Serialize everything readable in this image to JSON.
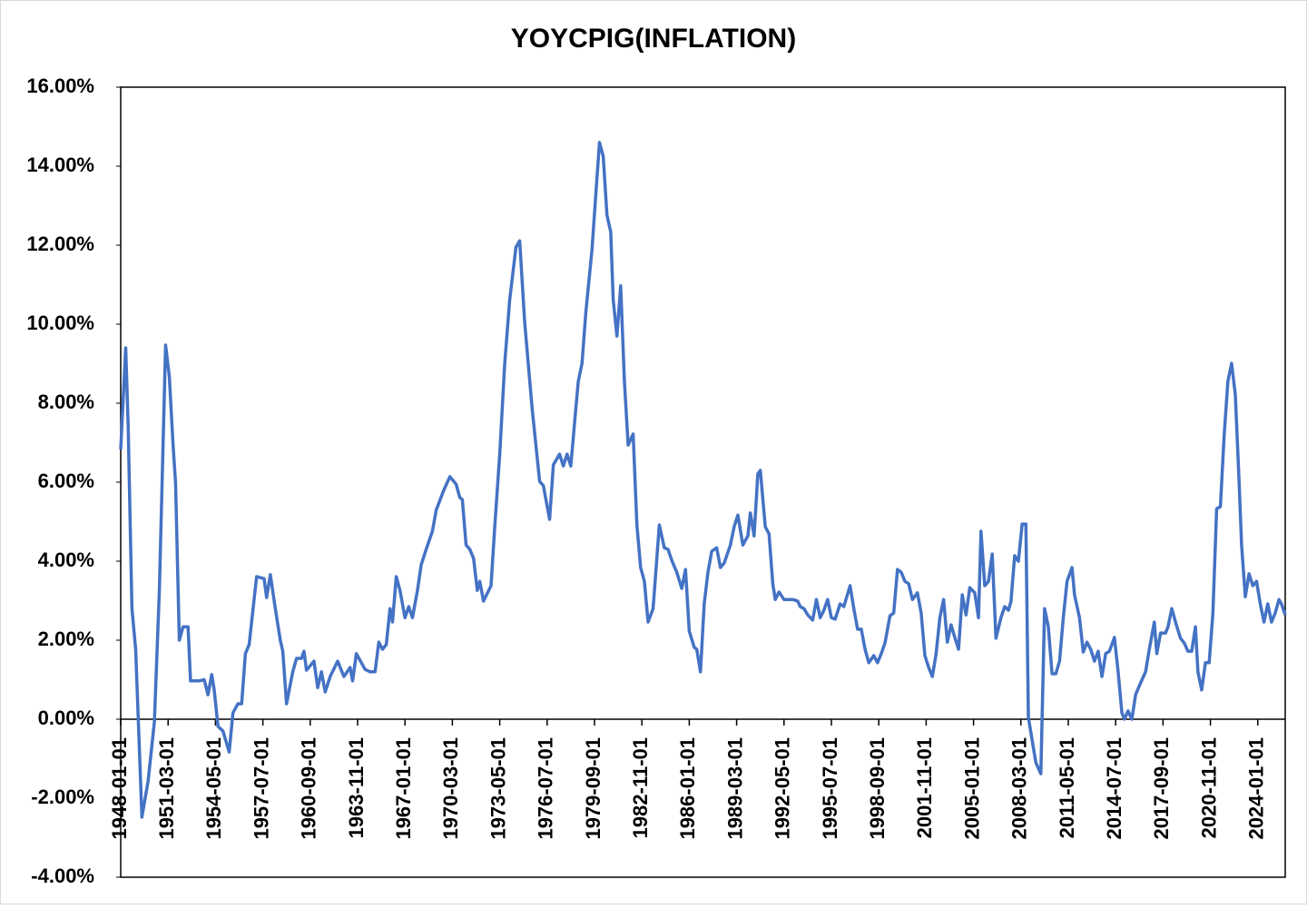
{
  "chart_data": {
    "type": "line",
    "title": "YOYCPIG(INFLATION)",
    "color": "#4472c4",
    "xlim": [
      "1948-01-01",
      "2025-11-01"
    ],
    "xticks": [
      "1948-01-01",
      "1951-03-01",
      "1954-05-01",
      "1957-07-01",
      "1960-09-01",
      "1963-11-01",
      "1967-01-01",
      "1970-03-01",
      "1973-05-01",
      "1976-07-01",
      "1979-09-01",
      "1982-11-01",
      "1986-01-01",
      "1989-03-01",
      "1992-05-01",
      "1995-07-01",
      "1998-09-01",
      "2001-11-01",
      "2005-01-01",
      "2008-03-01",
      "2011-05-01",
      "2014-07-01",
      "2017-09-01",
      "2020-11-01",
      "2024-01-01"
    ],
    "ylim": [
      -4,
      16
    ],
    "yticks": [
      {
        "value": -4,
        "label": "-4.00%"
      },
      {
        "value": -2,
        "label": "-2.00%"
      },
      {
        "value": 0,
        "label": "0.00%"
      },
      {
        "value": 2,
        "label": "2.00%"
      },
      {
        "value": 4,
        "label": "4.00%"
      },
      {
        "value": 6,
        "label": "6.00%"
      },
      {
        "value": 8,
        "label": "8.00%"
      },
      {
        "value": 10,
        "label": "10.00%"
      },
      {
        "value": 12,
        "label": "12.00%"
      },
      {
        "value": 14,
        "label": "14.00%"
      },
      {
        "value": 16,
        "label": "16.00%"
      }
    ],
    "x": [
      "1948-01-01",
      "1948-05-01",
      "1948-07-01",
      "1948-10-01",
      "1949-01-01",
      "1949-06-01",
      "1949-11-01",
      "1950-04-01",
      "1950-08-01",
      "1951-01-01",
      "1951-04-01",
      "1951-07-01",
      "1951-09-01",
      "1951-12-01",
      "1952-03-01",
      "1952-07-01",
      "1952-09-01",
      "1953-04-01",
      "1953-08-01",
      "1953-11-01",
      "1954-02-01",
      "1954-04-01",
      "1954-07-01",
      "1954-11-01",
      "1955-04-01",
      "1955-07-01",
      "1955-11-01",
      "1956-02-01",
      "1956-05-01",
      "1956-08-01",
      "1957-02-01",
      "1957-08-01",
      "1957-10-01",
      "1958-01-01",
      "1958-05-01",
      "1958-09-01",
      "1958-11-01",
      "1959-02-01",
      "1959-07-01",
      "1959-10-01",
      "1960-02-01",
      "1960-04-01",
      "1960-06-01",
      "1960-12-01",
      "1961-03-01",
      "1961-06-01",
      "1961-09-01",
      "1962-01-01",
      "1962-07-01",
      "1962-12-01",
      "1963-05-01",
      "1963-07-01",
      "1963-10-01",
      "1964-05-01",
      "1964-09-01",
      "1965-01-01",
      "1965-04-01",
      "1965-07-01",
      "1965-10-01",
      "1966-01-01",
      "1966-03-01",
      "1966-06-01",
      "1966-09-01",
      "1967-01-01",
      "1967-04-01",
      "1967-07-01",
      "1967-11-01",
      "1968-02-01",
      "1968-06-01",
      "1968-11-01",
      "1969-02-01",
      "1969-08-01",
      "1970-01-01",
      "1970-06-01",
      "1970-09-01",
      "1970-11-01",
      "1971-02-01",
      "1971-05-01",
      "1971-08-01",
      "1971-11-01",
      "1972-01-01",
      "1972-04-01",
      "1972-10-01",
      "1973-01-01",
      "1973-05-01",
      "1973-09-01",
      "1974-01-01",
      "1974-06-01",
      "1974-09-01",
      "1975-01-01",
      "1975-07-01",
      "1976-01-01",
      "1976-04-01",
      "1976-09-01",
      "1976-12-01",
      "1977-05-01",
      "1977-08-01",
      "1977-11-01",
      "1978-02-01",
      "1978-06-01",
      "1978-08-01",
      "1978-11-01",
      "1979-02-01",
      "1979-07-01",
      "1979-10-01",
      "1980-01-01",
      "1980-04-01",
      "1980-07-01",
      "1980-10-01",
      "1980-12-01",
      "1981-03-01",
      "1981-06-01",
      "1981-09-01",
      "1981-12-01",
      "1982-04-01",
      "1982-07-01",
      "1982-10-01",
      "1983-01-01",
      "1983-04-01",
      "1983-08-01",
      "1984-01-01",
      "1984-05-01",
      "1984-08-01",
      "1984-11-01",
      "1985-03-01",
      "1985-07-01",
      "1985-10-01",
      "1986-01-01",
      "1986-05-01",
      "1986-07-01",
      "1986-10-01",
      "1987-01-01",
      "1987-04-01",
      "1987-07-01",
      "1987-11-01",
      "1988-02-01",
      "1988-05-01",
      "1988-10-01",
      "1989-01-01",
      "1989-04-01",
      "1989-08-01",
      "1989-12-01",
      "1990-02-01",
      "1990-05-01",
      "1990-08-01",
      "1990-10-01",
      "1991-02-01",
      "1991-05-01",
      "1991-08-01",
      "1991-10-01",
      "1992-01-01",
      "1992-05-01",
      "1992-12-01",
      "1993-04-01",
      "1993-06-01",
      "1993-09-01",
      "1993-12-01",
      "1994-04-01",
      "1994-07-01",
      "1994-10-01",
      "1995-01-01",
      "1995-04-01",
      "1995-07-01",
      "1995-10-01",
      "1996-02-01",
      "1996-05-01",
      "1996-10-01",
      "1997-01-01",
      "1997-04-01",
      "1997-07-01",
      "1997-10-01",
      "1998-01-01",
      "1998-05-01",
      "1998-08-01",
      "1998-11-01",
      "1999-02-01",
      "1999-06-01",
      "1999-09-01",
      "1999-12-01",
      "2000-03-01",
      "2000-06-01",
      "2000-09-01",
      "2000-12-01",
      "2001-04-01",
      "2001-07-01",
      "2001-10-01",
      "2002-01-01",
      "2002-04-01",
      "2002-07-01",
      "2002-10-01",
      "2003-01-01",
      "2003-04-01",
      "2003-07-01",
      "2003-10-01",
      "2004-01-01",
      "2004-04-01",
      "2004-07-01",
      "2004-10-01",
      "2005-02-01",
      "2005-05-01",
      "2005-07-01",
      "2005-10-01",
      "2006-01-01",
      "2006-04-01",
      "2006-07-01",
      "2006-11-01",
      "2007-02-01",
      "2007-05-01",
      "2007-07-01",
      "2007-10-01",
      "2008-01-01",
      "2008-04-01",
      "2008-07-01",
      "2008-09-01",
      "2008-12-01",
      "2009-03-01",
      "2009-07-01",
      "2009-10-01",
      "2010-01-01",
      "2010-04-01",
      "2010-07-01",
      "2010-10-01",
      "2011-01-01",
      "2011-04-01",
      "2011-08-01",
      "2011-10-01",
      "2012-02-01",
      "2012-05-01",
      "2012-08-01",
      "2012-11-01",
      "2013-02-01",
      "2013-05-01",
      "2013-08-01",
      "2013-11-01",
      "2014-02-01",
      "2014-06-01",
      "2014-09-01",
      "2014-12-01",
      "2015-02-01",
      "2015-05-01",
      "2015-08-01",
      "2015-11-01",
      "2016-03-01",
      "2016-07-01",
      "2016-10-01",
      "2017-02-01",
      "2017-04-01",
      "2017-07-01",
      "2017-11-01",
      "2018-01-01",
      "2018-04-01",
      "2018-07-01",
      "2018-11-01",
      "2019-02-01",
      "2019-05-01",
      "2019-08-01",
      "2019-11-01",
      "2020-01-01",
      "2020-04-01",
      "2020-07-01",
      "2020-10-01",
      "2021-01-01",
      "2021-04-01",
      "2021-07-01",
      "2021-10-01",
      "2022-01-01",
      "2022-04-01",
      "2022-07-01",
      "2022-10-01",
      "2022-12-01",
      "2023-03-01",
      "2023-06-01",
      "2023-09-01",
      "2023-12-01",
      "2024-03-01",
      "2024-06-01",
      "2024-09-01",
      "2024-12-01",
      "2025-03-01",
      "2025-06-01",
      "2025-08-01",
      "2025-11-01"
    ],
    "values": [
      6.83,
      9.4,
      7.4,
      2.8,
      1.77,
      -2.48,
      -1.56,
      -0.07,
      3.26,
      9.47,
      8.67,
      6.94,
      5.98,
      2.0,
      2.34,
      2.34,
      0.97,
      0.97,
      1.0,
      0.62,
      1.13,
      0.74,
      -0.18,
      -0.3,
      -0.83,
      0.16,
      0.39,
      0.39,
      1.66,
      1.89,
      3.61,
      3.56,
      3.08,
      3.66,
      2.8,
      2.0,
      1.72,
      0.39,
      1.2,
      1.54,
      1.54,
      1.72,
      1.24,
      1.47,
      0.8,
      1.2,
      0.69,
      1.08,
      1.47,
      1.08,
      1.31,
      0.97,
      1.66,
      1.26,
      1.2,
      1.2,
      1.95,
      1.77,
      1.89,
      2.8,
      2.46,
      3.61,
      3.26,
      2.57,
      2.85,
      2.57,
      3.26,
      3.91,
      4.3,
      4.76,
      5.29,
      5.79,
      6.14,
      5.95,
      5.61,
      5.56,
      4.41,
      4.3,
      4.07,
      3.26,
      3.49,
      2.99,
      3.38,
      4.87,
      6.71,
      9.01,
      10.62,
      11.95,
      12.11,
      10.05,
      7.86,
      6.02,
      5.91,
      5.06,
      6.44,
      6.71,
      6.41,
      6.71,
      6.41,
      7.86,
      8.55,
      9.01,
      10.28,
      11.89,
      13.26,
      14.6,
      14.25,
      12.76,
      12.34,
      10.62,
      9.7,
      10.97,
      8.55,
      6.94,
      7.22,
      4.92,
      3.84,
      3.49,
      2.46,
      2.8,
      4.92,
      4.34,
      4.3,
      4.02,
      3.72,
      3.31,
      3.79,
      2.23,
      1.82,
      1.77,
      1.2,
      2.92,
      3.72,
      4.25,
      4.34,
      3.84,
      3.95,
      4.41,
      4.87,
      5.17,
      4.41,
      4.64,
      5.22,
      4.64,
      6.21,
      6.3,
      4.87,
      4.69,
      3.43,
      3.03,
      3.22,
      3.03,
      3.03,
      2.99,
      2.85,
      2.8,
      2.64,
      2.51,
      3.03,
      2.57,
      2.76,
      3.03,
      2.57,
      2.53,
      2.92,
      2.85,
      3.38,
      2.8,
      2.28,
      2.28,
      1.77,
      1.43,
      1.61,
      1.43,
      1.66,
      1.93,
      2.62,
      2.69,
      3.79,
      3.72,
      3.49,
      3.43,
      3.03,
      3.2,
      2.69,
      1.61,
      1.31,
      1.08,
      1.66,
      2.57,
      3.03,
      1.95,
      2.39,
      2.07,
      1.77,
      3.15,
      2.64,
      3.33,
      3.2,
      2.57,
      4.76,
      3.38,
      3.49,
      4.18,
      2.05,
      2.57,
      2.85,
      2.76,
      2.97,
      4.14,
      4.0,
      4.94,
      4.94,
      0.05,
      -0.53,
      -1.1,
      -1.38,
      2.8,
      2.34,
      1.15,
      1.15,
      1.47,
      2.57,
      3.49,
      3.84,
      3.15,
      2.57,
      1.7,
      1.95,
      1.77,
      1.47,
      1.72,
      1.08,
      1.66,
      1.72,
      2.07,
      1.2,
      0.16,
      0.0,
      0.21,
      0.0,
      0.62,
      0.92,
      1.2,
      1.77,
      2.46,
      1.66,
      2.18,
      2.18,
      2.34,
      2.8,
      2.46,
      2.05,
      1.93,
      1.72,
      1.72,
      2.34,
      1.2,
      0.74,
      1.43,
      1.43,
      2.69,
      5.33,
      5.38,
      7.17,
      8.55,
      9.01,
      8.21,
      6.02,
      4.41,
      3.1,
      3.68,
      3.38,
      3.49,
      2.92,
      2.46,
      2.92,
      2.46,
      2.69,
      3.03,
      2.92,
      2.64
    ]
  }
}
